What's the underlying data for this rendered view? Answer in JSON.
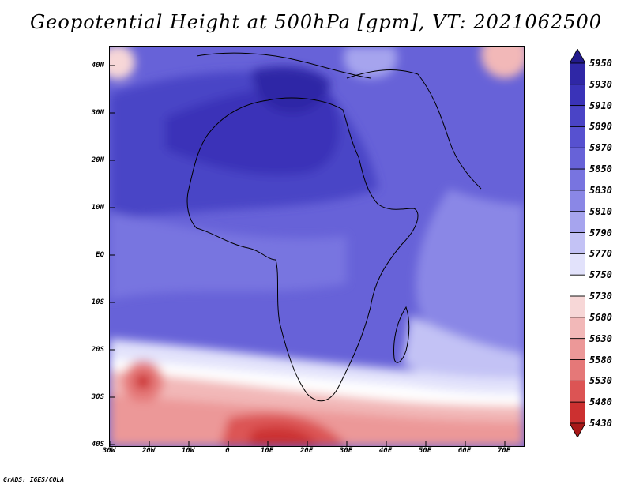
{
  "title": "Geopotential Height at 500hPa [gpm], VT: 2021062500",
  "footer": "GrADS: IGES/COLA",
  "map": {
    "lat_ticks": [
      "40N",
      "30N",
      "20N",
      "10N",
      "EQ",
      "10S",
      "20S",
      "30S",
      "40S"
    ],
    "lon_ticks": [
      "30W",
      "20W",
      "10W",
      "0",
      "10E",
      "20E",
      "30E",
      "40E",
      "50E",
      "60E",
      "70E"
    ],
    "extent": {
      "lon_min": -30,
      "lon_max": 75,
      "lat_min": -40,
      "lat_max": 45
    }
  },
  "colorbar": {
    "levels": [
      "5950",
      "5930",
      "5910",
      "5890",
      "5870",
      "5850",
      "5830",
      "5810",
      "5790",
      "5770",
      "5750",
      "5730",
      "5680",
      "5630",
      "5580",
      "5530",
      "5480",
      "5430"
    ],
    "colors": [
      "#221a8c",
      "#2f27a6",
      "#3a33b8",
      "#4a44c6",
      "#5751d0",
      "#6762d8",
      "#7874e0",
      "#8a87e6",
      "#a6a4ee",
      "#c3c2f5",
      "#e2e2fb",
      "#ffffff",
      "#f7d7d7",
      "#f2b8b8",
      "#ec9898",
      "#e57878",
      "#dc5454",
      "#cc3030",
      "#a81818"
    ]
  }
}
